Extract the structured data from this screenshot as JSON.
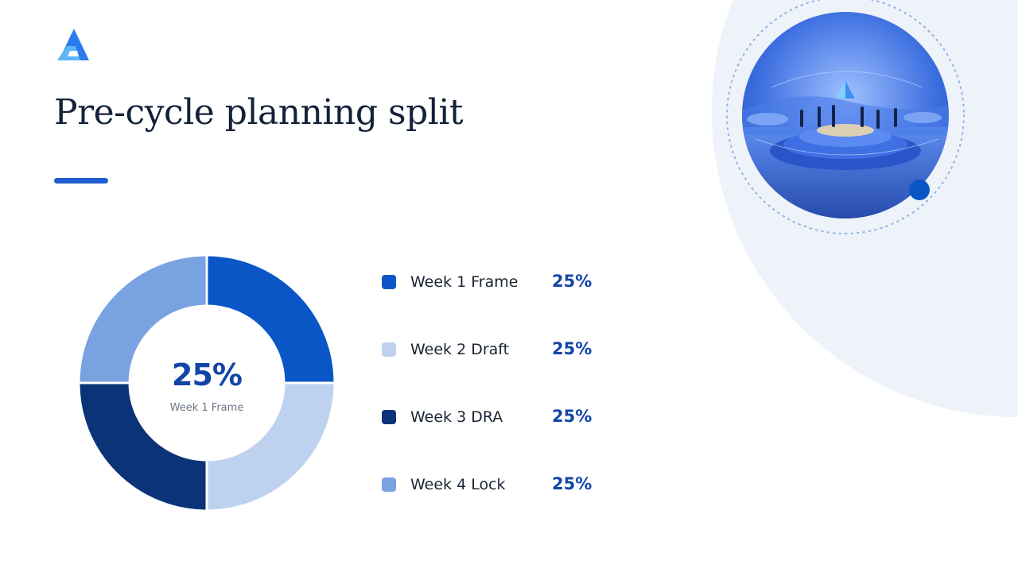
{
  "slide": {
    "title": "Pre-cycle planning split"
  },
  "colors": {
    "accent": "#1f5fd0",
    "text_dark": "#14213a",
    "value_blue": "#1345a8",
    "background_arc": "#eef2f9"
  },
  "icons": {
    "logo": "triangle-logo-icon",
    "hero": "planning-illustration"
  },
  "chart_data": {
    "type": "pie",
    "variant": "donut",
    "title": "",
    "categories": [
      "Week 1 Frame",
      "Week 2 Draft",
      "Week 3 DRA",
      "Week 4 Lock"
    ],
    "values": [
      25,
      25,
      25,
      25
    ],
    "value_labels": [
      "25%",
      "25%",
      "25%",
      "25%"
    ],
    "colors": [
      "#0a56c6",
      "#bed2f0",
      "#0b3478",
      "#78a2e0"
    ],
    "center": {
      "value": "25%",
      "label": "Week 1 Frame"
    },
    "legend": "right"
  }
}
